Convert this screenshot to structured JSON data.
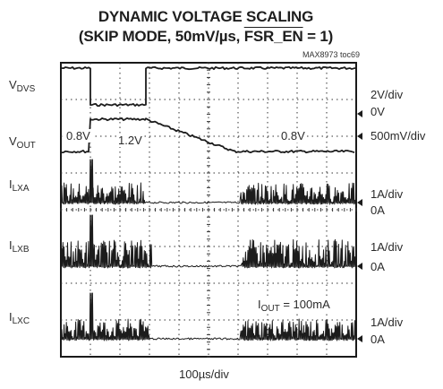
{
  "chart_data": {
    "type": "oscilloscope",
    "title_line1": "DYNAMIC VOLTAGE SCALING",
    "title_line2_prefix": "(SKIP MODE, 50mV/µs, ",
    "title_line2_overline": "FSR_EN",
    "title_line2_suffix": " = 1)",
    "figure_id": "MAX8973 toc69",
    "time_scale": "100µs/div",
    "divisions": {
      "x": 10,
      "y": 8
    },
    "channels": [
      {
        "name_main": "V",
        "name_sub": "DVS",
        "scale": "2V/div",
        "ground": "0V"
      },
      {
        "name_main": "V",
        "name_sub": "OUT",
        "scale": "500mV/div",
        "ground": ""
      },
      {
        "name_main": "I",
        "name_sub": "LXA",
        "scale": "1A/div",
        "ground": "0A"
      },
      {
        "name_main": "I",
        "name_sub": "LXB",
        "scale": "1A/div",
        "ground": "0A"
      },
      {
        "name_main": "I",
        "name_sub": "LXC",
        "scale": "1A/div",
        "ground": "0A"
      }
    ],
    "annotations": {
      "vout_start": "0.8V",
      "vout_high": "1.2V",
      "vout_end": "0.8V",
      "iout_main": "I",
      "iout_sub": "OUT",
      "iout_value": " = 100mA"
    }
  }
}
